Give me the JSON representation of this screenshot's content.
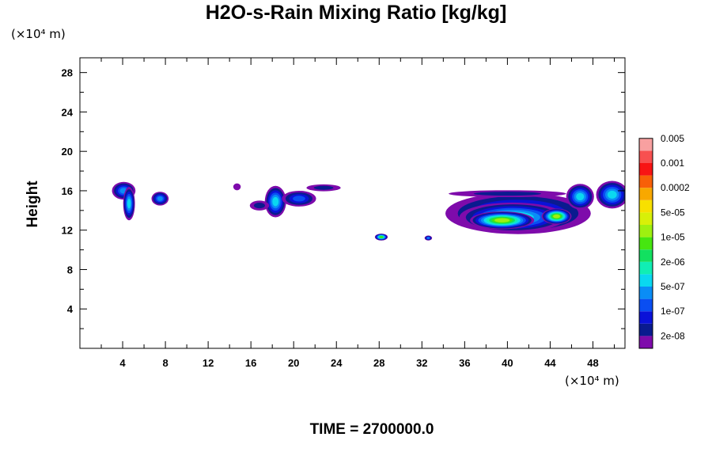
{
  "chart_data": {
    "type": "contour",
    "title": "H2O-s-Rain Mixing Ratio [kg/kg]",
    "x_unit": "(×10⁴ m)",
    "y_unit": "(×10⁴ m)",
    "ylabel": "Height",
    "footer": "TIME = 2700000.0",
    "xlim": [
      0,
      51
    ],
    "ylim": [
      0,
      29.5
    ],
    "x_ticks": [
      4,
      8,
      12,
      16,
      20,
      24,
      28,
      32,
      36,
      40,
      44,
      48
    ],
    "x_minor_ticks": [
      2,
      6,
      10,
      14,
      18,
      22,
      26,
      30,
      34,
      38,
      42,
      46,
      50
    ],
    "y_ticks": [
      4,
      8,
      12,
      16,
      20,
      24,
      28
    ],
    "y_minor_ticks": [
      2,
      6,
      10,
      14,
      18,
      22,
      26
    ],
    "colorbar": {
      "colors": [
        "#7e0bab",
        "#0a1b8f",
        "#0a12d8",
        "#0a4ef2",
        "#0a8df6",
        "#0ad8f0",
        "#10eeb4",
        "#12e060",
        "#46e610",
        "#9ef010",
        "#d8f008",
        "#f8e000",
        "#f8a800",
        "#f86008",
        "#f81414",
        "#f85050",
        "#f8a0a0"
      ],
      "labels": [
        "2e-08",
        "1e-07",
        "5e-07",
        "2e-06",
        "1e-05",
        "5e-05",
        "0.0002",
        "0.001",
        "0.005"
      ]
    },
    "regions": [
      {
        "x": 4.1,
        "y": 16.0,
        "rx": 1.1,
        "ry": 0.9,
        "level": 4
      },
      {
        "x": 4.6,
        "y": 14.7,
        "rx": 0.55,
        "ry": 1.7,
        "level": 5
      },
      {
        "x": 7.5,
        "y": 15.2,
        "rx": 0.8,
        "ry": 0.7,
        "level": 4
      },
      {
        "x": 14.7,
        "y": 16.4,
        "rx": 0.35,
        "ry": 0.35,
        "level": 0
      },
      {
        "x": 18.3,
        "y": 14.9,
        "rx": 1.0,
        "ry": 1.6,
        "level": 5
      },
      {
        "x": 20.5,
        "y": 15.2,
        "rx": 1.6,
        "ry": 0.8,
        "level": 3
      },
      {
        "x": 22.8,
        "y": 16.3,
        "rx": 1.6,
        "ry": 0.35,
        "level": 1
      },
      {
        "x": 16.8,
        "y": 14.5,
        "rx": 0.9,
        "ry": 0.5,
        "level": 1
      },
      {
        "x": 28.2,
        "y": 11.3,
        "rx": 0.6,
        "ry": 0.35,
        "level": 8
      },
      {
        "x": 32.6,
        "y": 11.2,
        "rx": 0.35,
        "ry": 0.25,
        "level": 4
      },
      {
        "x": 41.0,
        "y": 13.7,
        "rx": 6.8,
        "ry": 2.1,
        "level": 4
      },
      {
        "x": 40.5,
        "y": 13.3,
        "rx": 5.0,
        "ry": 1.5,
        "level": 6
      },
      {
        "x": 39.5,
        "y": 13.0,
        "rx": 3.0,
        "ry": 0.9,
        "level": 9
      },
      {
        "x": 44.6,
        "y": 13.4,
        "rx": 1.4,
        "ry": 0.8,
        "level": 9
      },
      {
        "x": 46.8,
        "y": 15.4,
        "rx": 1.3,
        "ry": 1.3,
        "level": 5
      },
      {
        "x": 49.8,
        "y": 15.6,
        "rx": 1.5,
        "ry": 1.4,
        "level": 5
      },
      {
        "x": 40.0,
        "y": 15.7,
        "rx": 5.5,
        "ry": 0.35,
        "level": 1
      }
    ]
  }
}
